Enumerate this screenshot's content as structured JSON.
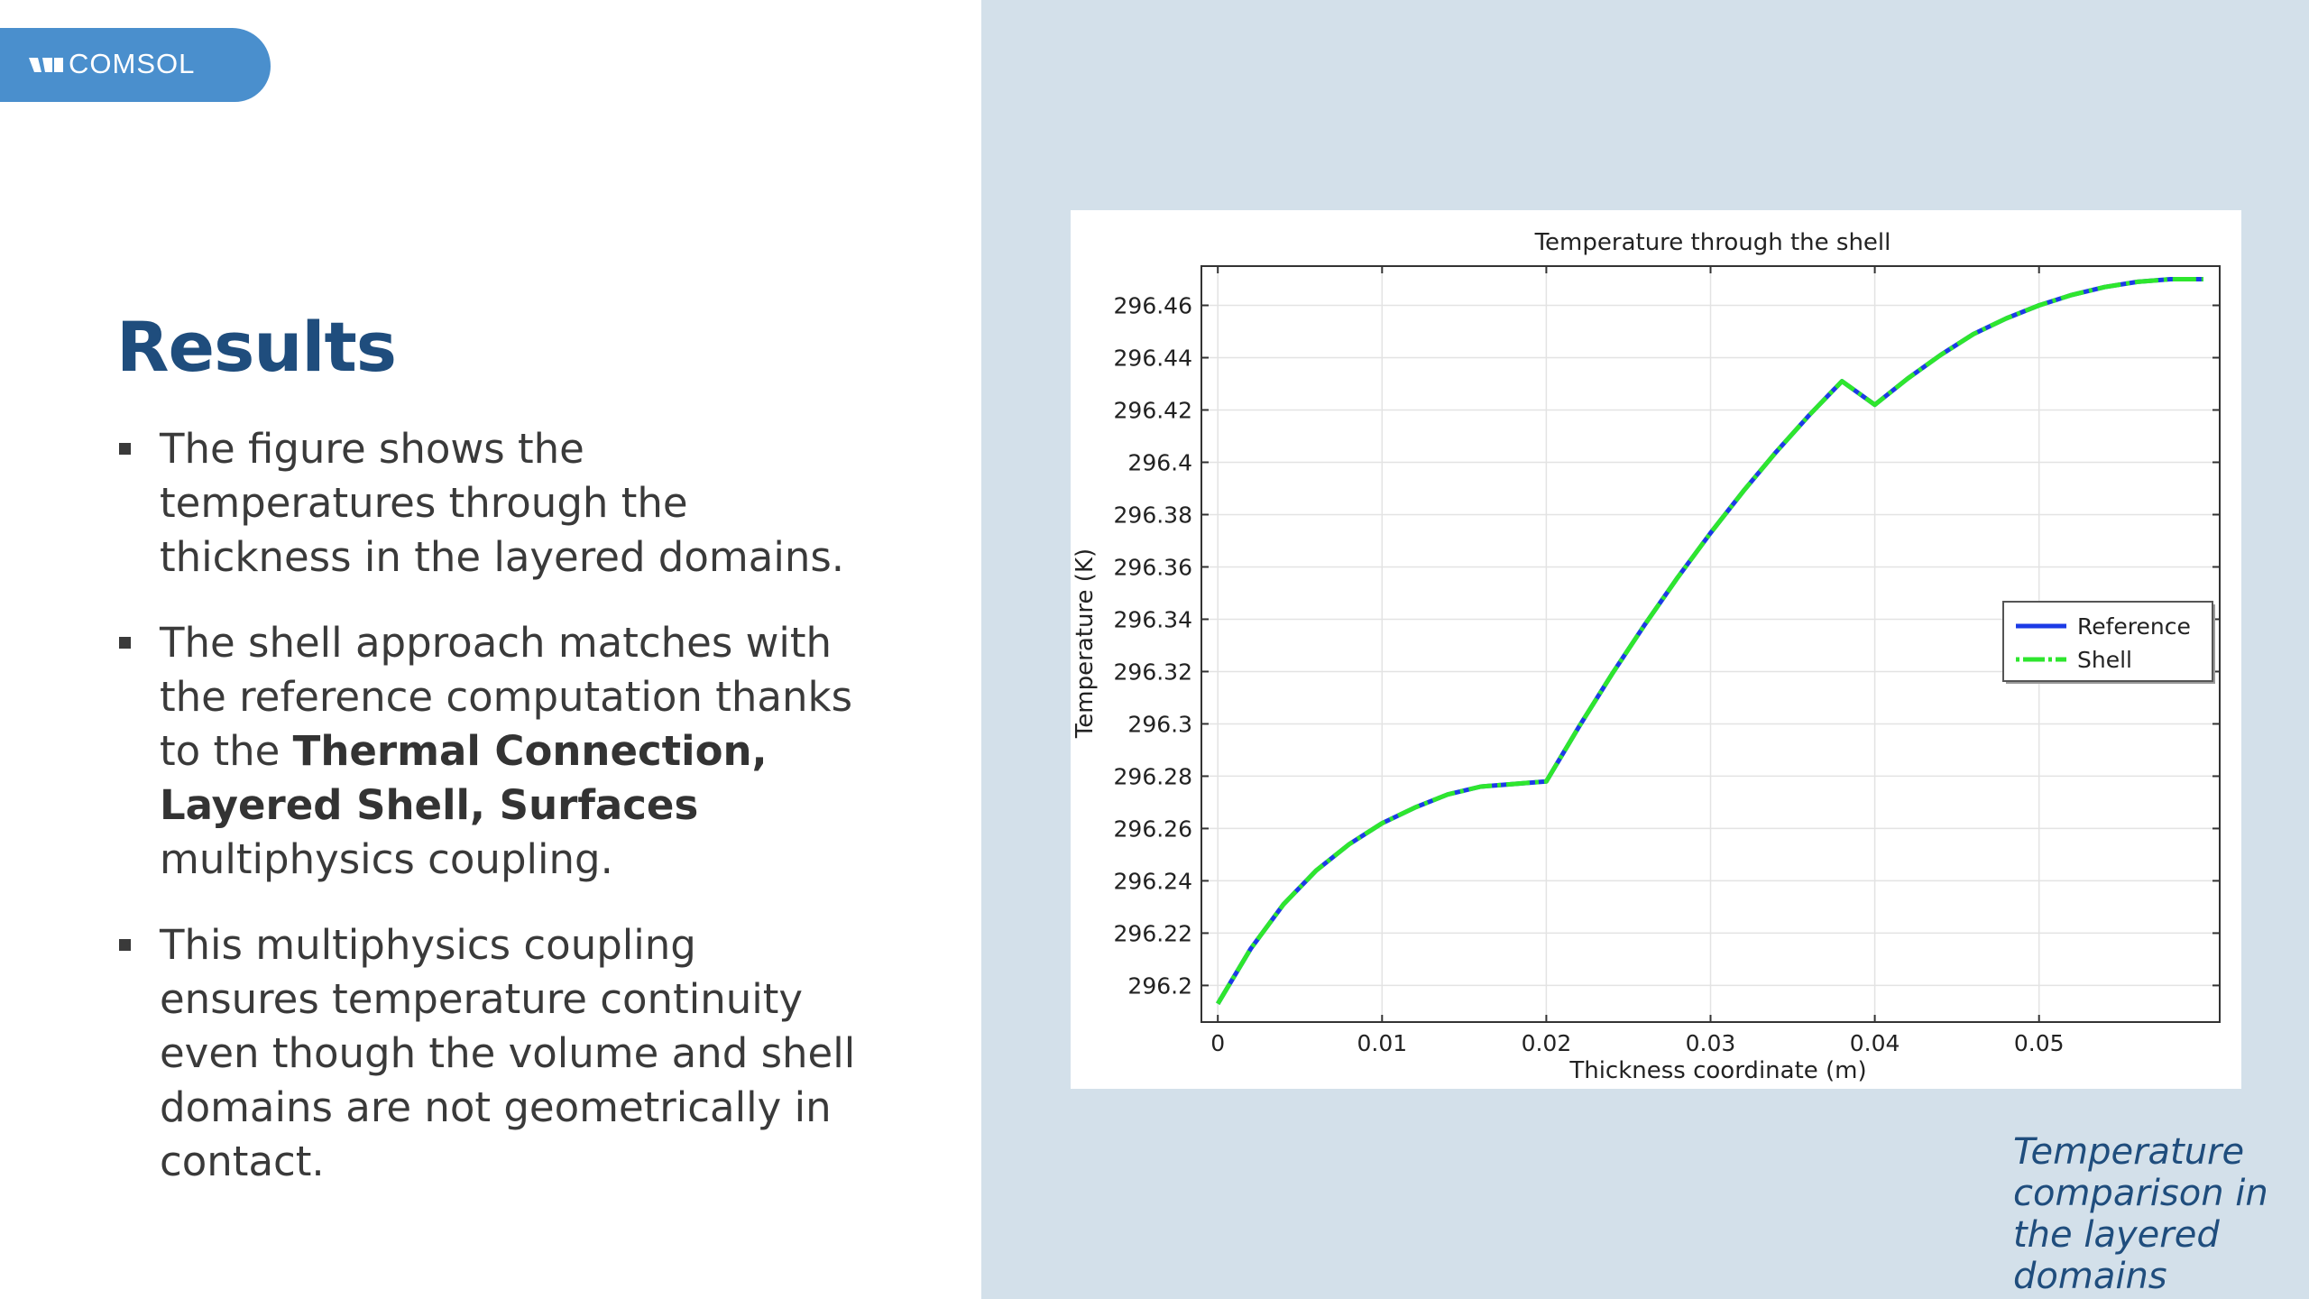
{
  "logo": {
    "text": "COMSOL"
  },
  "slide": {
    "title": "Results",
    "bullets": [
      {
        "text": "The figure shows the temperatures through the thickness in the layered domains."
      },
      {
        "before": "The shell approach matches with the reference computation thanks to the ",
        "bold": "Thermal Connection, Layered Shell, Surfaces",
        "after": " multiphysics coupling."
      },
      {
        "text": "This multiphysics coupling ensures temperature continuity even though the volume and shell domains are not geometrically in contact."
      }
    ],
    "caption": "Temperature comparison in the layered domains"
  },
  "colors": {
    "title_blue": "#1f4d7d",
    "logo_blue": "#4a8fcd",
    "right_bg": "#d3e0ea",
    "reference_line": "#1c3be6",
    "shell_line": "#2ee62e"
  },
  "chart_data": {
    "type": "line",
    "title": "Temperature through the shell",
    "xlabel": "Thickness coordinate (m)",
    "ylabel": "Temperature (K)",
    "xlim": [
      -0.001,
      0.061
    ],
    "ylim": [
      296.186,
      296.475
    ],
    "xticks": [
      0,
      0.01,
      0.02,
      0.03,
      0.04,
      0.05
    ],
    "xtick_labels": [
      "0",
      "0.01",
      "0.02",
      "0.03",
      "0.04",
      "0.05"
    ],
    "yticks": [
      296.2,
      296.22,
      296.24,
      296.26,
      296.28,
      296.3,
      296.32,
      296.34,
      296.36,
      296.38,
      296.4,
      296.42,
      296.44,
      296.46
    ],
    "ytick_labels": [
      "296.2",
      "296.22",
      "296.24",
      "296.26",
      "296.28",
      "296.3",
      "296.32",
      "296.34",
      "296.36",
      "296.38",
      "296.4",
      "296.42",
      "296.44",
      "296.46"
    ],
    "grid": true,
    "legend_position": "right",
    "series": [
      {
        "name": "Reference",
        "style": "solid",
        "x": [
          0,
          0.002,
          0.004,
          0.006,
          0.008,
          0.01,
          0.012,
          0.014,
          0.016,
          0.018,
          0.02,
          0.022,
          0.024,
          0.026,
          0.028,
          0.03,
          0.032,
          0.034,
          0.036,
          0.038,
          0.04,
          0.042,
          0.044,
          0.046,
          0.048,
          0.05,
          0.052,
          0.054,
          0.056,
          0.058,
          0.06
        ],
        "y": [
          296.193,
          296.214,
          296.231,
          296.244,
          296.254,
          296.262,
          296.268,
          296.273,
          296.276,
          296.277,
          296.278,
          296.299,
          296.319,
          296.338,
          296.356,
          296.373,
          296.389,
          296.404,
          296.418,
          296.431,
          296.422,
          296.432,
          296.441,
          296.449,
          296.455,
          296.46,
          296.464,
          296.467,
          296.469,
          296.47,
          296.47
        ]
      },
      {
        "name": "Shell",
        "style": "dash-dot",
        "x": [
          0,
          0.002,
          0.004,
          0.006,
          0.008,
          0.01,
          0.012,
          0.014,
          0.016,
          0.018,
          0.02,
          0.022,
          0.024,
          0.026,
          0.028,
          0.03,
          0.032,
          0.034,
          0.036,
          0.038,
          0.04,
          0.042,
          0.044,
          0.046,
          0.048,
          0.05,
          0.052,
          0.054,
          0.056,
          0.058,
          0.06
        ],
        "y": [
          296.193,
          296.214,
          296.231,
          296.244,
          296.254,
          296.262,
          296.268,
          296.273,
          296.276,
          296.277,
          296.278,
          296.299,
          296.319,
          296.338,
          296.356,
          296.373,
          296.389,
          296.404,
          296.418,
          296.431,
          296.422,
          296.432,
          296.441,
          296.449,
          296.455,
          296.46,
          296.464,
          296.467,
          296.469,
          296.47,
          296.47
        ]
      }
    ]
  }
}
